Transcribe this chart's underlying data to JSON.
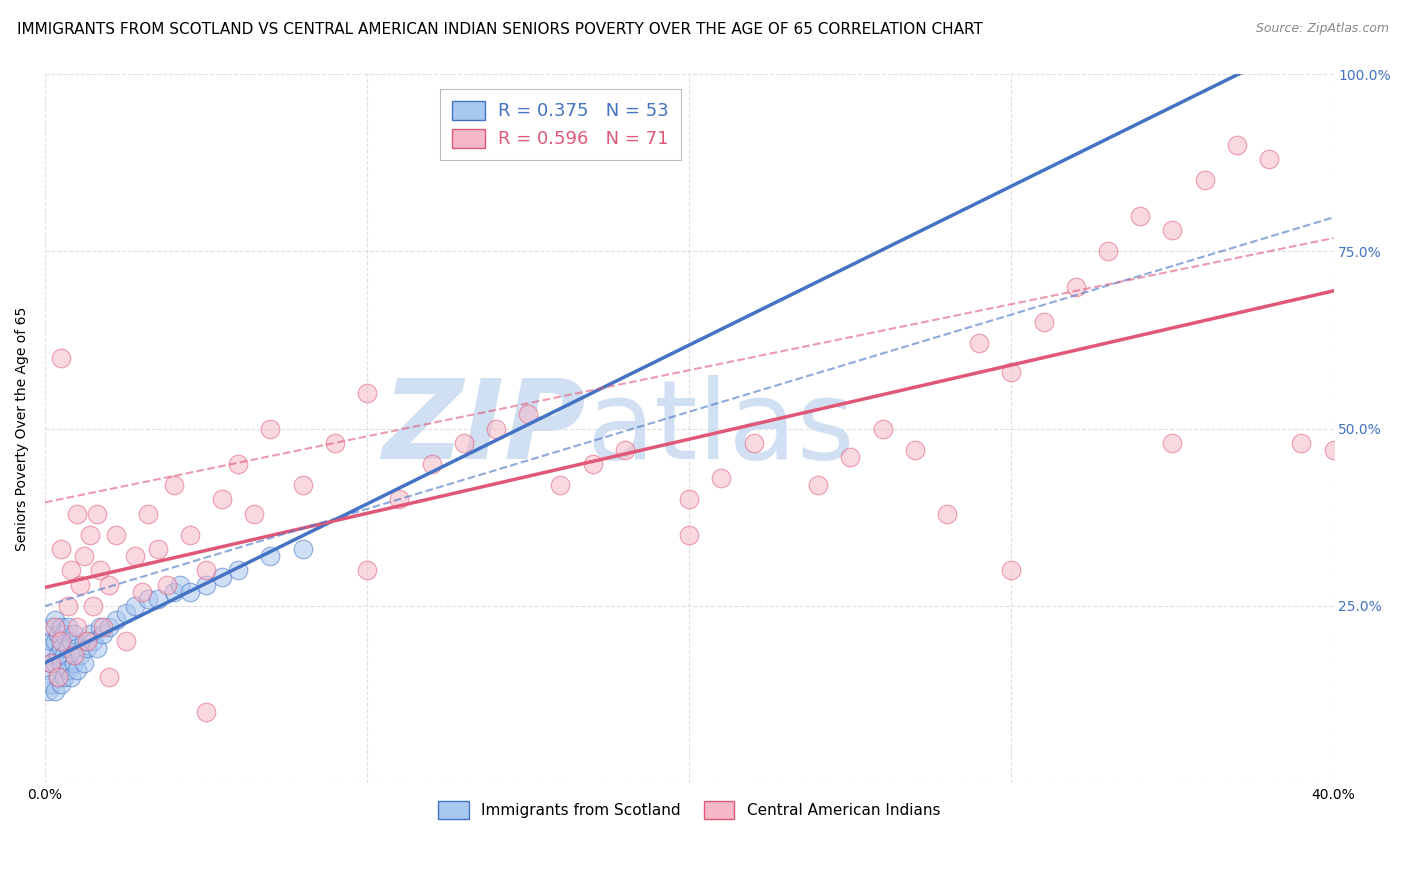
{
  "title": "IMMIGRANTS FROM SCOTLAND VS CENTRAL AMERICAN INDIAN SENIORS POVERTY OVER THE AGE OF 65 CORRELATION CHART",
  "source": "Source: ZipAtlas.com",
  "ylabel": "Seniors Poverty Over the Age of 65",
  "xlim": [
    0.0,
    0.4
  ],
  "ylim": [
    0.0,
    1.0
  ],
  "scotland_color": "#a8c8f0",
  "central_am_color": "#f5b8c8",
  "scotland_line_color": "#4472c4",
  "central_am_line_color": "#e05878",
  "scotland_R": 0.375,
  "central_am_R": 0.596,
  "scotland_N": 53,
  "central_am_N": 71,
  "scotland_x": [
    0.001,
    0.001,
    0.001,
    0.002,
    0.002,
    0.002,
    0.002,
    0.003,
    0.003,
    0.003,
    0.003,
    0.004,
    0.004,
    0.004,
    0.005,
    0.005,
    0.005,
    0.005,
    0.006,
    0.006,
    0.006,
    0.007,
    0.007,
    0.007,
    0.008,
    0.008,
    0.009,
    0.009,
    0.01,
    0.01,
    0.011,
    0.012,
    0.012,
    0.013,
    0.014,
    0.015,
    0.016,
    0.017,
    0.018,
    0.02,
    0.022,
    0.025,
    0.028,
    0.032,
    0.035,
    0.04,
    0.042,
    0.045,
    0.05,
    0.055,
    0.06,
    0.07,
    0.08
  ],
  "scotland_y": [
    0.13,
    0.16,
    0.19,
    0.14,
    0.17,
    0.2,
    0.22,
    0.13,
    0.17,
    0.2,
    0.23,
    0.15,
    0.18,
    0.21,
    0.14,
    0.17,
    0.19,
    0.22,
    0.15,
    0.18,
    0.21,
    0.16,
    0.19,
    0.22,
    0.15,
    0.2,
    0.17,
    0.21,
    0.16,
    0.19,
    0.18,
    0.17,
    0.2,
    0.19,
    0.21,
    0.2,
    0.19,
    0.22,
    0.21,
    0.22,
    0.23,
    0.24,
    0.25,
    0.26,
    0.26,
    0.27,
    0.28,
    0.27,
    0.28,
    0.29,
    0.3,
    0.32,
    0.33
  ],
  "central_x": [
    0.002,
    0.003,
    0.004,
    0.005,
    0.005,
    0.007,
    0.008,
    0.009,
    0.01,
    0.011,
    0.012,
    0.013,
    0.014,
    0.015,
    0.016,
    0.017,
    0.018,
    0.02,
    0.022,
    0.025,
    0.028,
    0.03,
    0.032,
    0.035,
    0.038,
    0.04,
    0.045,
    0.05,
    0.055,
    0.06,
    0.065,
    0.07,
    0.08,
    0.09,
    0.1,
    0.11,
    0.12,
    0.13,
    0.14,
    0.15,
    0.16,
    0.17,
    0.18,
    0.2,
    0.21,
    0.22,
    0.24,
    0.25,
    0.26,
    0.27,
    0.28,
    0.29,
    0.3,
    0.31,
    0.32,
    0.33,
    0.34,
    0.35,
    0.36,
    0.37,
    0.38,
    0.39,
    0.4,
    0.005,
    0.01,
    0.02,
    0.05,
    0.1,
    0.2,
    0.3,
    0.35
  ],
  "central_y": [
    0.17,
    0.22,
    0.15,
    0.2,
    0.33,
    0.25,
    0.3,
    0.18,
    0.22,
    0.28,
    0.32,
    0.2,
    0.35,
    0.25,
    0.38,
    0.3,
    0.22,
    0.28,
    0.35,
    0.2,
    0.32,
    0.27,
    0.38,
    0.33,
    0.28,
    0.42,
    0.35,
    0.3,
    0.4,
    0.45,
    0.38,
    0.5,
    0.42,
    0.48,
    0.55,
    0.4,
    0.45,
    0.48,
    0.5,
    0.52,
    0.42,
    0.45,
    0.47,
    0.4,
    0.43,
    0.48,
    0.42,
    0.46,
    0.5,
    0.47,
    0.38,
    0.62,
    0.58,
    0.65,
    0.7,
    0.75,
    0.8,
    0.78,
    0.85,
    0.9,
    0.88,
    0.48,
    0.47,
    0.6,
    0.38,
    0.15,
    0.1,
    0.3,
    0.35,
    0.3,
    0.48
  ],
  "watermark_zip": "ZIP",
  "watermark_atlas": "atlas",
  "watermark_color_zip": "#c8daf0",
  "watermark_color_atlas": "#c8daf0",
  "grid_color": "#cccccc",
  "background_color": "#ffffff",
  "title_fontsize": 11,
  "axis_label_fontsize": 10,
  "tick_fontsize": 10,
  "legend_fontsize": 12
}
